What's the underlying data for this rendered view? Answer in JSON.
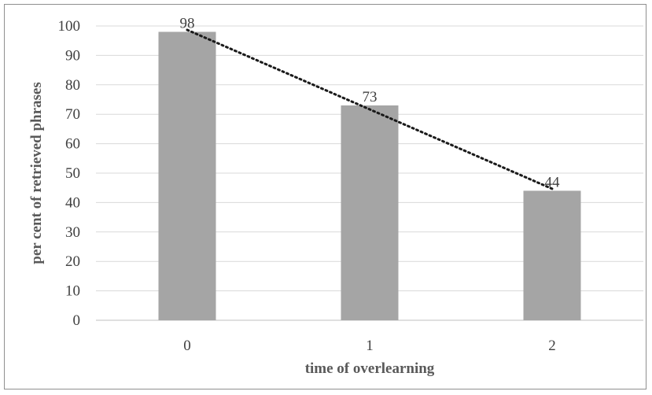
{
  "chart_data": {
    "type": "bar",
    "categories": [
      "0",
      "1",
      "2"
    ],
    "values": [
      98,
      73,
      44
    ],
    "data_labels": [
      "98",
      "73",
      "44"
    ],
    "xlabel": "time of overlearning",
    "ylabel": "per cent of retrieved phrases",
    "ylim": [
      0,
      100
    ],
    "ytick_step": 10,
    "grid": true,
    "trendline": "linear",
    "colors": {
      "bar": "#a5a5a5",
      "trendline": "#1a1a1a",
      "grid": "#d9d9d9"
    }
  }
}
